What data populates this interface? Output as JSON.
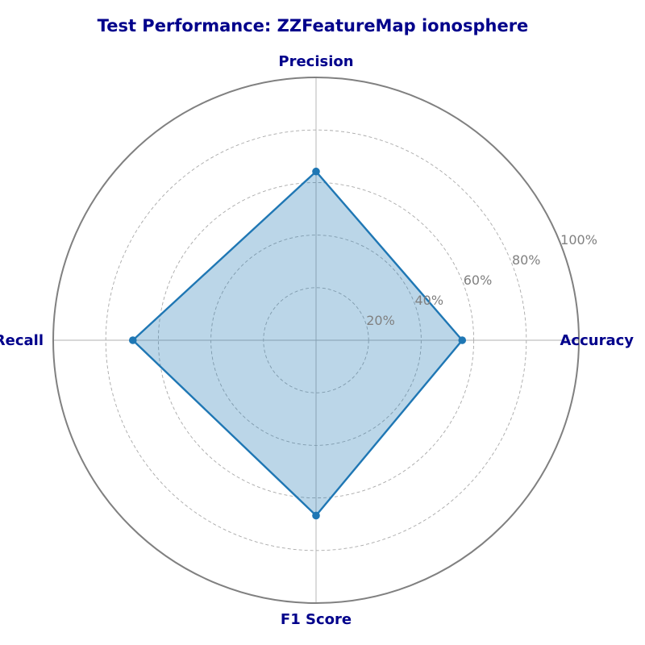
{
  "chart_data": {
    "type": "radar",
    "title": "Test Performance: ZZFeatureMap ionosphere",
    "categories": [
      "Accuracy",
      "Precision",
      "Recall",
      "F1 Score"
    ],
    "series": [
      {
        "values": [
          0.556,
          0.642,
          0.697,
          0.667
        ]
      }
    ],
    "rlim": [
      0,
      1
    ],
    "r_ticks": [
      0.2,
      0.4,
      0.6,
      0.8,
      1.0
    ],
    "r_tick_labels": [
      "20%",
      "40%",
      "60%",
      "80%",
      "100%"
    ],
    "grid": true,
    "colors": {
      "line": "#1f77b4",
      "fill": "#1f77b4",
      "text": "#00008b",
      "ticks": "#808080",
      "frame": "#808080",
      "grid": "#a9a9a9"
    }
  }
}
